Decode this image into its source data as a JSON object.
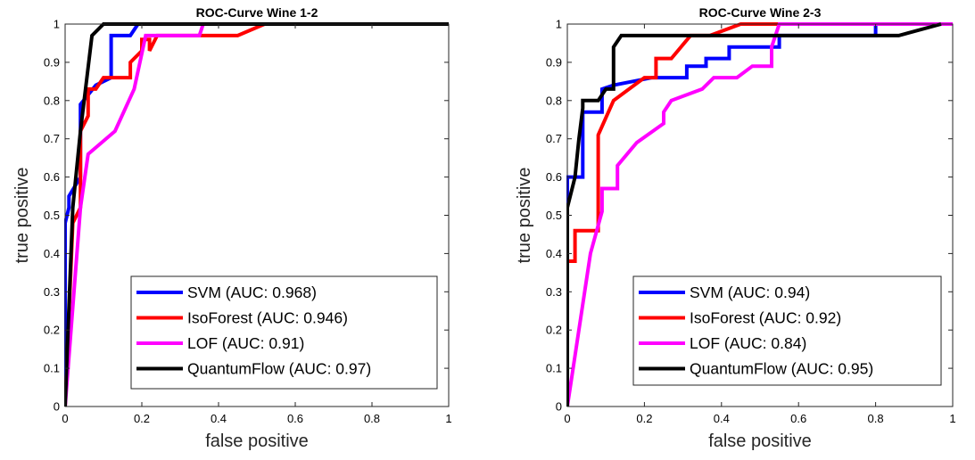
{
  "chart_data": [
    {
      "type": "line",
      "title": "ROC-Curve Wine 1-2",
      "xlabel": "false positive",
      "ylabel": "true positive",
      "xlim": [
        0,
        1
      ],
      "ylim": [
        0,
        1
      ],
      "xticks": [
        "0",
        "0.2",
        "0.4",
        "0.6",
        "0.8",
        "1"
      ],
      "yticks": [
        "0",
        "0.1",
        "0.2",
        "0.3",
        "0.4",
        "0.5",
        "0.6",
        "0.7",
        "0.8",
        "0.9",
        "1"
      ],
      "grid": false,
      "legend_location": "bottom-right",
      "series": [
        {
          "name": "SVM (AUC: 0.968)",
          "color": "#0000ff",
          "x": [
            0,
            0,
            0.01,
            0.01,
            0.04,
            0.04,
            0.08,
            0.12,
            0.12,
            0.17,
            0.19,
            0.19,
            1
          ],
          "y": [
            0,
            0.48,
            0.52,
            0.55,
            0.6,
            0.79,
            0.84,
            0.86,
            0.97,
            0.97,
            1,
            1,
            1
          ]
        },
        {
          "name": "IsoForest (AUC: 0.946)",
          "color": "#ff0000",
          "x": [
            0,
            0.02,
            0.04,
            0.04,
            0.06,
            0.06,
            0.08,
            0.1,
            0.1,
            0.17,
            0.17,
            0.2,
            0.2,
            0.22,
            0.22,
            0.24,
            0.45,
            0.52,
            1
          ],
          "y": [
            0,
            0.48,
            0.52,
            0.72,
            0.76,
            0.83,
            0.83,
            0.86,
            0.86,
            0.86,
            0.9,
            0.93,
            0.96,
            0.96,
            0.93,
            0.97,
            0.97,
            1,
            1
          ]
        },
        {
          "name": "LOF (AUC: 0.91)",
          "color": "#ff00ff",
          "x": [
            0,
            0.04,
            0.06,
            0.13,
            0.18,
            0.21,
            0.35,
            0.36,
            1
          ],
          "y": [
            0,
            0.52,
            0.66,
            0.72,
            0.83,
            0.97,
            0.97,
            1,
            1
          ]
        },
        {
          "name": "QuantumFlow (AUC: 0.97)",
          "color": "#000000",
          "x": [
            0,
            0.02,
            0.04,
            0.07,
            0.1,
            0.11,
            1
          ],
          "y": [
            0,
            0.52,
            0.72,
            0.97,
            1,
            1,
            1
          ]
        }
      ]
    },
    {
      "type": "line",
      "title": "ROC-Curve Wine 2-3",
      "xlabel": "false positive",
      "ylabel": "true positive",
      "xlim": [
        0,
        1
      ],
      "ylim": [
        0,
        1
      ],
      "xticks": [
        "0",
        "0.2",
        "0.4",
        "0.6",
        "0.8",
        "1"
      ],
      "yticks": [
        "0",
        "0.1",
        "0.2",
        "0.3",
        "0.4",
        "0.5",
        "0.6",
        "0.7",
        "0.8",
        "0.9",
        "1"
      ],
      "grid": false,
      "legend_location": "bottom-right",
      "series": [
        {
          "name": "SVM (AUC: 0.94)",
          "color": "#0000ff",
          "x": [
            0,
            0,
            0.04,
            0.04,
            0.05,
            0.05,
            0.09,
            0.09,
            0.12,
            0.22,
            0.31,
            0.31,
            0.36,
            0.36,
            0.42,
            0.42,
            0.48,
            0.48,
            0.55,
            0.55,
            0.63,
            0.63,
            0.8,
            0.8,
            1
          ],
          "y": [
            0,
            0.6,
            0.6,
            0.77,
            0.77,
            0.77,
            0.77,
            0.83,
            0.84,
            0.86,
            0.86,
            0.89,
            0.89,
            0.91,
            0.91,
            0.94,
            0.94,
            0.94,
            0.94,
            0.97,
            0.97,
            0.97,
            0.97,
            1,
            1
          ]
        },
        {
          "name": "IsoForest (AUC: 0.92)",
          "color": "#ff0000",
          "x": [
            0,
            0,
            0.02,
            0.02,
            0.06,
            0.06,
            0.08,
            0.08,
            0.12,
            0.2,
            0.23,
            0.23,
            0.27,
            0.32,
            0.37,
            0.45,
            0.54,
            0.97
          ],
          "y": [
            0,
            0.38,
            0.38,
            0.46,
            0.46,
            0.46,
            0.46,
            0.71,
            0.8,
            0.86,
            0.86,
            0.91,
            0.91,
            0.97,
            0.97,
            1,
            1,
            1
          ]
        },
        {
          "name": "LOF (AUC: 0.84)",
          "color": "#ff00ff",
          "x": [
            0,
            0.06,
            0.09,
            0.09,
            0.13,
            0.13,
            0.18,
            0.25,
            0.25,
            0.27,
            0.35,
            0.38,
            0.44,
            0.48,
            0.53,
            0.53,
            0.55,
            1
          ],
          "y": [
            0,
            0.4,
            0.51,
            0.57,
            0.57,
            0.63,
            0.69,
            0.74,
            0.77,
            0.8,
            0.83,
            0.86,
            0.86,
            0.89,
            0.89,
            0.94,
            1,
            1
          ]
        },
        {
          "name": "QuantumFlow (AUC: 0.95)",
          "color": "#000000",
          "x": [
            0,
            0,
            0.02,
            0.03,
            0.04,
            0.04,
            0.08,
            0.1,
            0.12,
            0.12,
            0.14,
            0.14,
            0.86,
            0.97
          ],
          "y": [
            0,
            0.52,
            0.6,
            0.7,
            0.78,
            0.8,
            0.8,
            0.83,
            0.83,
            0.94,
            0.97,
            0.97,
            0.97,
            1
          ]
        }
      ]
    }
  ]
}
